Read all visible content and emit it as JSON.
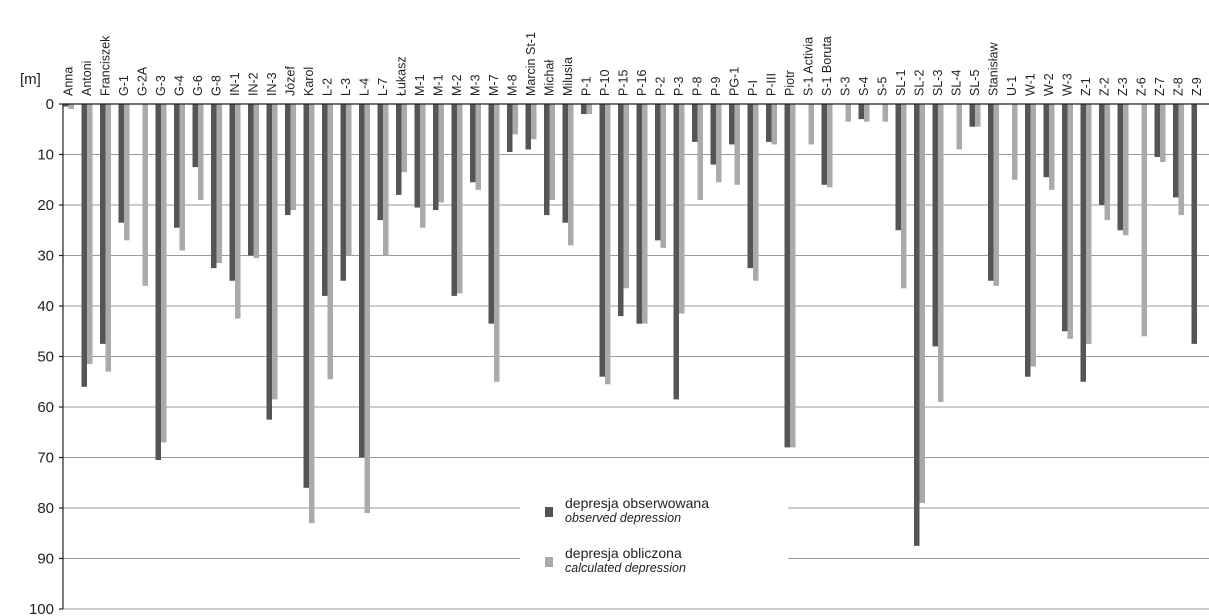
{
  "chart_data": {
    "type": "bar",
    "ylabel": "[m]",
    "ylim": [
      0,
      100
    ],
    "yticks": [
      0,
      10,
      20,
      30,
      40,
      50,
      60,
      70,
      80,
      90,
      100
    ],
    "y_inverted": true,
    "grid": true,
    "legend_position": "bottom-center",
    "categories": [
      "Anna",
      "Antoni",
      "Franciszek",
      "G-1",
      "G-2A",
      "G-3",
      "G-4",
      "G-6",
      "G-8",
      "IN-1",
      "IN-2",
      "IN-3",
      "Józef",
      "Karol",
      "L-2",
      "L-3",
      "L-4",
      "L-7",
      "Łukasz",
      "M-1",
      "M-1",
      "M-2",
      "M-3",
      "M-7",
      "M-8",
      "Marcin St-1",
      "Michał",
      "Milusia",
      "P-1",
      "P-10",
      "P-15",
      "P-16",
      "P-2",
      "P-3",
      "P-8",
      "P-9",
      "PG-1",
      "P-I",
      "P-III",
      "Piotr",
      "S-1 Activia",
      "S-1 Boruta",
      "S-3",
      "S-4",
      "S-5",
      "SL-1",
      "SL-2",
      "SL-3",
      "SL-4",
      "SL-5",
      "Stanisław",
      "U-1",
      "W-1",
      "W-2",
      "W-3",
      "Z-1",
      "Z-2",
      "Z-3",
      "Z-6",
      "Z-7",
      "Z-8",
      "Z-9"
    ],
    "series": [
      {
        "name": "depresja obserwowana",
        "name_en": "observed depression",
        "color": "#555555",
        "values": [
          0.5,
          56,
          47.5,
          23.5,
          null,
          70.5,
          24.5,
          12.5,
          32.5,
          35,
          30,
          62.5,
          22,
          76,
          38,
          35,
          70,
          23,
          18,
          20.5,
          21,
          38,
          15.5,
          43.5,
          9.5,
          9,
          22,
          23.5,
          2,
          54,
          42,
          43.5,
          27,
          58.5,
          7.5,
          12,
          8,
          32.5,
          7.5,
          68,
          null,
          16,
          null,
          3,
          null,
          25,
          87.5,
          48,
          null,
          4.5,
          35,
          null,
          54,
          14.5,
          45,
          55,
          20,
          25,
          null,
          10.5,
          18.5,
          47.5
        ]
      },
      {
        "name": "depresja obliczona",
        "name_en": "calculated depression",
        "color": "#aaaaaa",
        "values": [
          1,
          51.5,
          53,
          27,
          36,
          67,
          29,
          19,
          31.5,
          42.5,
          30.5,
          58.5,
          21,
          83,
          54.5,
          30,
          81,
          30,
          13.5,
          24.5,
          19.5,
          37.5,
          17,
          55,
          6,
          7,
          19,
          28,
          2,
          55.5,
          36.5,
          43.5,
          28.5,
          41.5,
          19,
          15.5,
          16,
          35,
          8,
          68,
          8,
          16.5,
          3.5,
          3.5,
          3.5,
          36.5,
          79,
          59,
          9,
          4.5,
          36,
          15,
          52,
          17,
          46.5,
          47.5,
          23,
          26,
          46,
          11.5,
          22,
          null
        ]
      }
    ]
  }
}
